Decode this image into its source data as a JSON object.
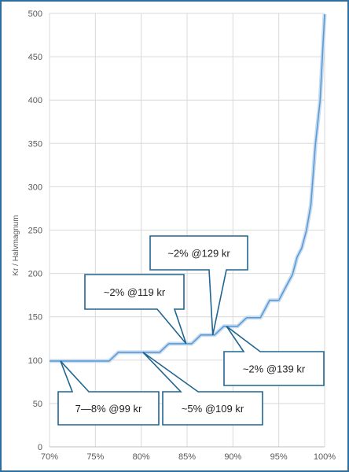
{
  "chart_data": {
    "type": "line",
    "title": "",
    "xlabel": "",
    "ylabel": "Kr / Halvmagnum",
    "xlim": [
      0.7,
      1.0
    ],
    "ylim": [
      0,
      500
    ],
    "x_ticks": [
      "70%",
      "75%",
      "80%",
      "85%",
      "90%",
      "95%",
      "100%"
    ],
    "y_ticks": [
      "0",
      "50",
      "100",
      "150",
      "200",
      "250",
      "300",
      "350",
      "400",
      "450",
      "500"
    ],
    "grid": true,
    "line_color": "#5b9bd5",
    "series": [
      {
        "values": [
          [
            0.7,
            99
          ],
          [
            0.765,
            99
          ],
          [
            0.77,
            104
          ],
          [
            0.775,
            109
          ],
          [
            0.8,
            109
          ],
          [
            0.82,
            109
          ],
          [
            0.825,
            114
          ],
          [
            0.83,
            119
          ],
          [
            0.855,
            119
          ],
          [
            0.86,
            124
          ],
          [
            0.865,
            129
          ],
          [
            0.88,
            129
          ],
          [
            0.885,
            134
          ],
          [
            0.89,
            139
          ],
          [
            0.905,
            139
          ],
          [
            0.91,
            144
          ],
          [
            0.915,
            149
          ],
          [
            0.93,
            149
          ],
          [
            0.935,
            159
          ],
          [
            0.94,
            169
          ],
          [
            0.95,
            169
          ],
          [
            0.955,
            179
          ],
          [
            0.96,
            189
          ],
          [
            0.965,
            199
          ],
          [
            0.97,
            219
          ],
          [
            0.975,
            229
          ],
          [
            0.98,
            249
          ],
          [
            0.985,
            279
          ],
          [
            0.99,
            349
          ],
          [
            0.995,
            399
          ],
          [
            1.0,
            499
          ]
        ]
      }
    ],
    "annotations": [
      {
        "text": "7—8% @99 kr",
        "target": [
          0.712,
          99
        ]
      },
      {
        "text": "~5% @109 kr",
        "target": [
          0.802,
          109
        ]
      },
      {
        "text": "~2% @119 kr",
        "target": [
          0.849,
          119
        ]
      },
      {
        "text": "~2% @129 kr",
        "target": [
          0.878,
          129
        ]
      },
      {
        "text": "~2% @139 kr",
        "target": [
          0.893,
          139
        ]
      }
    ]
  }
}
